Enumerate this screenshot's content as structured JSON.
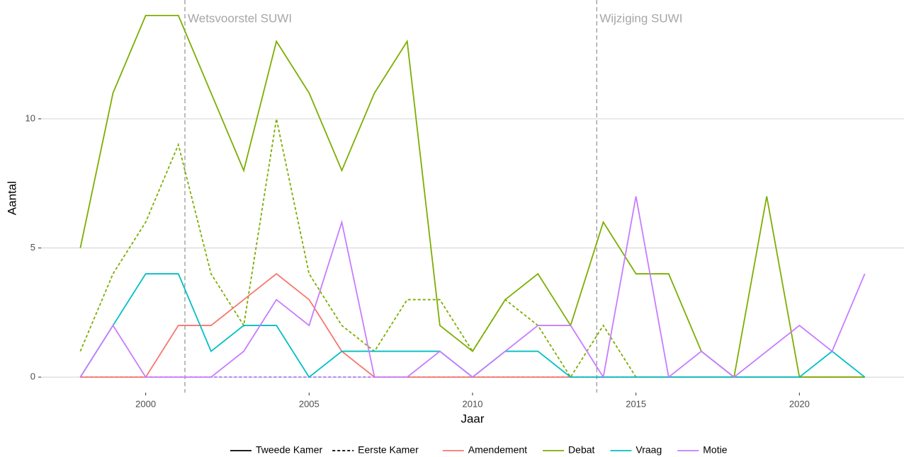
{
  "chart_data": {
    "type": "line",
    "x_label": "Jaar",
    "y_label": "Aantal",
    "x": [
      1998,
      1999,
      2000,
      2001,
      2002,
      2003,
      2004,
      2005,
      2006,
      2007,
      2008,
      2009,
      2010,
      2011,
      2012,
      2013,
      2014,
      2015,
      2016,
      2017,
      2018,
      2019,
      2020,
      2021,
      2022
    ],
    "xlim": [
      1996.8,
      2023.2
    ],
    "xticks": [
      2000,
      2005,
      2010,
      2015,
      2020
    ],
    "ylim": [
      -0.6,
      14.6
    ],
    "yticks": [
      0,
      5,
      10
    ],
    "grid": true,
    "annotations": [
      {
        "text": "Wetsvoorstel SUWI",
        "x": 2001.2
      },
      {
        "text": "Wijziging SUWI",
        "x": 2013.8
      }
    ],
    "legend_position": "bottom",
    "legend_linetype": [
      {
        "label": "Tweede Kamer",
        "dash": "solid"
      },
      {
        "label": "Eerste Kamer",
        "dash": "dotted"
      }
    ],
    "legend_color": [
      {
        "name": "Amendement",
        "color": "#f8766d"
      },
      {
        "name": "Debat",
        "color": "#7cae00"
      },
      {
        "name": "Vraag",
        "color": "#00bfc4"
      },
      {
        "name": "Motie",
        "color": "#c77cff"
      }
    ],
    "series": [
      {
        "name": "Amendement",
        "kamer": "Eerste Kamer",
        "color": "#f8766d",
        "dash": "dotted",
        "values": [
          0,
          0,
          0,
          0,
          0,
          0,
          0,
          0,
          0,
          0,
          0,
          0,
          0,
          0,
          0,
          0,
          0,
          0,
          0,
          0,
          0,
          0,
          0,
          0,
          0
        ]
      },
      {
        "name": "Vraag",
        "kamer": "Eerste Kamer",
        "color": "#00bfc4",
        "dash": "dotted",
        "values": [
          0,
          0,
          0,
          0,
          0,
          0,
          0,
          0,
          0,
          0,
          0,
          0,
          0,
          0,
          0,
          0,
          0,
          0,
          0,
          0,
          0,
          0,
          0,
          0,
          0
        ]
      },
      {
        "name": "Motie",
        "kamer": "Eerste Kamer",
        "color": "#c77cff",
        "dash": "dotted",
        "values": [
          0,
          0,
          0,
          0,
          0,
          0,
          0,
          0,
          0,
          0,
          0,
          0,
          0,
          0,
          0,
          0,
          0,
          0,
          0,
          0,
          0,
          0,
          0,
          0,
          0
        ]
      },
      {
        "name": "Debat",
        "kamer": "Eerste Kamer",
        "color": "#7cae00",
        "dash": "dotted",
        "values": [
          1,
          4,
          6,
          9,
          4,
          2,
          10,
          4,
          2,
          1,
          3,
          3,
          1,
          3,
          2,
          0,
          2,
          0,
          0,
          0,
          0,
          0,
          0,
          0,
          0
        ]
      },
      {
        "name": "Amendement",
        "kamer": "Tweede Kamer",
        "color": "#f8766d",
        "dash": "solid",
        "values": [
          0,
          0,
          0,
          2,
          2,
          3,
          4,
          3,
          1,
          0,
          0,
          0,
          0,
          0,
          0,
          0,
          0,
          0,
          0,
          0,
          0,
          0,
          0,
          0,
          0
        ]
      },
      {
        "name": "Debat",
        "kamer": "Tweede Kamer",
        "color": "#7cae00",
        "dash": "solid",
        "values": [
          5,
          11,
          14,
          14,
          11,
          8,
          13,
          11,
          8,
          11,
          13,
          2,
          1,
          3,
          4,
          2,
          6,
          4,
          4,
          1,
          0,
          7,
          0,
          0,
          0
        ]
      },
      {
        "name": "Vraag",
        "kamer": "Tweede Kamer",
        "color": "#00bfc4",
        "dash": "solid",
        "values": [
          0,
          2,
          4,
          4,
          1,
          2,
          2,
          0,
          1,
          1,
          1,
          1,
          0,
          1,
          1,
          0,
          0,
          0,
          0,
          0,
          0,
          0,
          0,
          1,
          0
        ]
      },
      {
        "name": "Motie",
        "kamer": "Tweede Kamer",
        "color": "#c77cff",
        "dash": "solid",
        "values": [
          0,
          2,
          0,
          0,
          0,
          1,
          3,
          2,
          6,
          0,
          0,
          1,
          0,
          1,
          2,
          2,
          0,
          7,
          0,
          1,
          0,
          1,
          2,
          1,
          4
        ]
      }
    ]
  }
}
